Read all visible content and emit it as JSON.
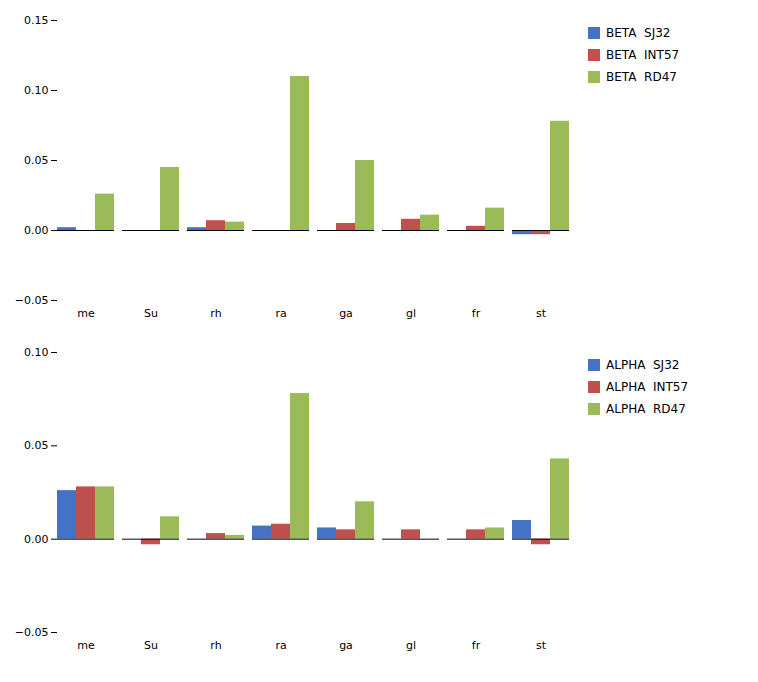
{
  "chart_data": [
    {
      "type": "bar",
      "categories": [
        "me",
        "Su",
        "rh",
        "ra",
        "ga",
        "gl",
        "fr",
        "st"
      ],
      "series": [
        {
          "name": "BETA  SJ32",
          "color": "#4472C4",
          "values": [
            0.002,
            0.0,
            0.002,
            0.0,
            0.0,
            0.0,
            0.0,
            -0.003
          ]
        },
        {
          "name": "BETA  INT57",
          "color": "#C0504D",
          "values": [
            0.0,
            0.0,
            0.007,
            0.0,
            0.005,
            0.008,
            0.003,
            -0.003
          ]
        },
        {
          "name": "BETA  RD47",
          "color": "#9BBB59",
          "values": [
            0.026,
            0.045,
            0.006,
            0.11,
            0.05,
            0.011,
            0.016,
            0.078
          ]
        }
      ],
      "ylim": [
        -0.05,
        0.15
      ],
      "yticks": [
        {
          "value": -0.05,
          "label": "−0.05"
        },
        {
          "value": 0.0,
          "label": "0.00"
        },
        0.05,
        {
          "value": 0.1,
          "label": "0.10"
        },
        0.15
      ],
      "legend": "right"
    },
    {
      "type": "bar",
      "categories": [
        "me",
        "Su",
        "rh",
        "ra",
        "ga",
        "gl",
        "fr",
        "st"
      ],
      "series": [
        {
          "name": "ALPHA  SJ32",
          "color": "#4472C4",
          "values": [
            0.026,
            0.0,
            0.0,
            0.007,
            0.006,
            0.0,
            0.0,
            0.01
          ]
        },
        {
          "name": "ALPHA  INT57",
          "color": "#C0504D",
          "values": [
            0.028,
            -0.003,
            0.003,
            0.008,
            0.005,
            0.005,
            0.005,
            -0.003
          ]
        },
        {
          "name": "ALPHA  RD47",
          "color": "#9BBB59",
          "values": [
            0.028,
            0.012,
            0.002,
            0.078,
            0.02,
            0.0,
            0.006,
            0.043
          ]
        }
      ],
      "ylim": [
        -0.05,
        0.1
      ],
      "yticks": [
        {
          "value": -0.05,
          "label": "−0.05"
        },
        {
          "value": 0.0,
          "label": "0.00"
        },
        0.05,
        {
          "value": 0.1,
          "label": "0.10"
        }
      ],
      "legend": "right"
    }
  ]
}
